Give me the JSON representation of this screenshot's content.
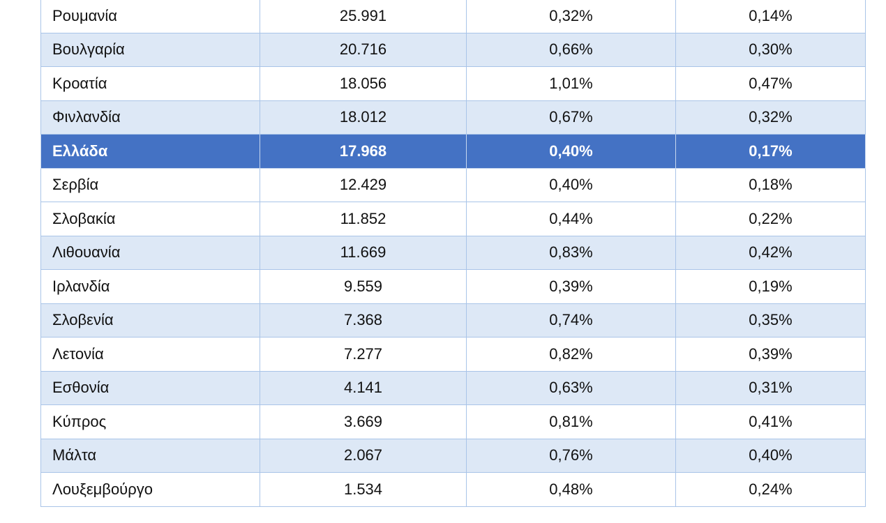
{
  "table": {
    "rows": [
      {
        "country": "Ρουμανία",
        "value": "25.991",
        "pct1": "0,32%",
        "pct2": "0,14%",
        "highlight": false
      },
      {
        "country": "Βουλγαρία",
        "value": "20.716",
        "pct1": "0,66%",
        "pct2": "0,30%",
        "highlight": false
      },
      {
        "country": "Κροατία",
        "value": "18.056",
        "pct1": "1,01%",
        "pct2": "0,47%",
        "highlight": false
      },
      {
        "country": "Φινλανδία",
        "value": "18.012",
        "pct1": "0,67%",
        "pct2": "0,32%",
        "highlight": false
      },
      {
        "country": "Ελλάδα",
        "value": "17.968",
        "pct1": "0,40%",
        "pct2": "0,17%",
        "highlight": true
      },
      {
        "country": "Σερβία",
        "value": "12.429",
        "pct1": "0,40%",
        "pct2": "0,18%",
        "highlight": false
      },
      {
        "country": "Σλοβακία",
        "value": "11.852",
        "pct1": "0,44%",
        "pct2": "0,22%",
        "highlight": false
      },
      {
        "country": "Λιθουανία",
        "value": "11.669",
        "pct1": "0,83%",
        "pct2": "0,42%",
        "highlight": false
      },
      {
        "country": "Ιρλανδία",
        "value": "9.559",
        "pct1": "0,39%",
        "pct2": "0,19%",
        "highlight": false
      },
      {
        "country": "Σλοβενία",
        "value": "7.368",
        "pct1": "0,74%",
        "pct2": "0,35%",
        "highlight": false
      },
      {
        "country": "Λετονία",
        "value": "7.277",
        "pct1": "0,82%",
        "pct2": "0,39%",
        "highlight": false
      },
      {
        "country": "Εσθονία",
        "value": "4.141",
        "pct1": "0,63%",
        "pct2": "0,31%",
        "highlight": false
      },
      {
        "country": "Κύπρος",
        "value": "3.669",
        "pct1": "0,81%",
        "pct2": "0,41%",
        "highlight": false
      },
      {
        "country": "Μάλτα",
        "value": "2.067",
        "pct1": "0,76%",
        "pct2": "0,40%",
        "highlight": false
      },
      {
        "country": "Λουξεμβούργο",
        "value": "1.534",
        "pct1": "0,48%",
        "pct2": "0,24%",
        "highlight": false
      }
    ]
  },
  "colors": {
    "highlight_row": "#4472c4",
    "alt_row": "#dde8f6",
    "border": "#a9c4e8"
  }
}
